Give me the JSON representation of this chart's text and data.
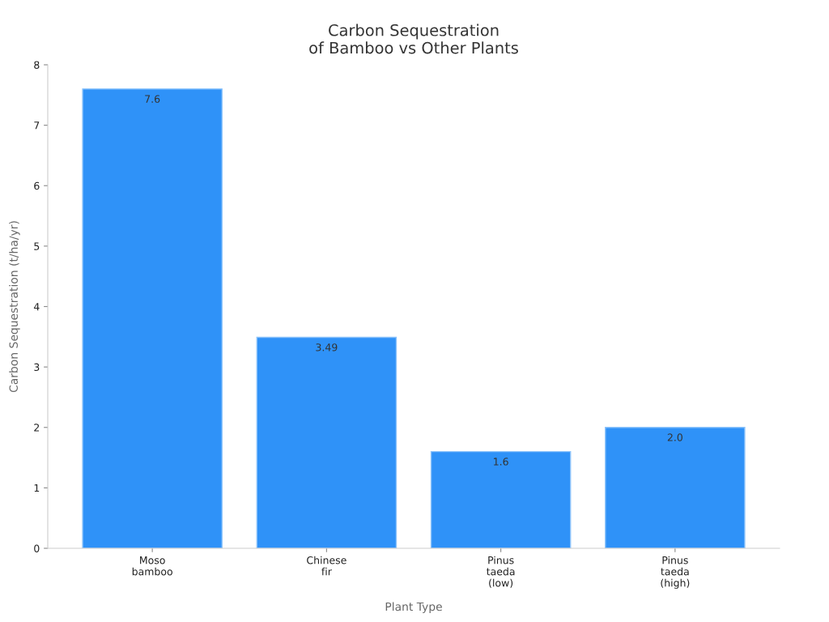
{
  "chart_data": {
    "type": "bar",
    "title": "Carbon Sequestration\nof Bamboo vs Other Plants",
    "xlabel": "Plant Type",
    "ylabel": "Carbon Sequestration (t/ha/yr)",
    "categories": [
      "Moso\nbamboo",
      "Chinese\nfir",
      "Pinus\ntaeda\n(low)",
      "Pinus\ntaeda\n(high)"
    ],
    "values": [
      7.6,
      3.49,
      1.6,
      2.0
    ],
    "value_labels": [
      "7.6",
      "3.49",
      "1.6",
      "2.0"
    ],
    "color": "#2f92f8",
    "ylim": [
      0,
      8
    ],
    "yticks": [
      0,
      1,
      2,
      3,
      4,
      5,
      6,
      7,
      8
    ],
    "grid": false
  }
}
